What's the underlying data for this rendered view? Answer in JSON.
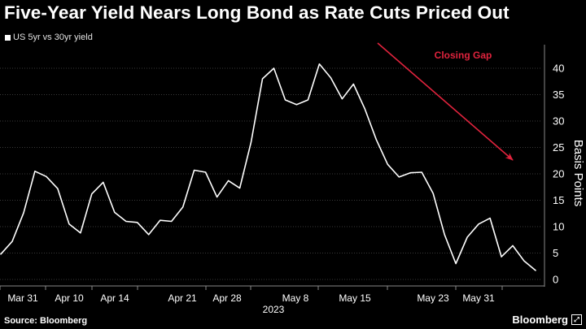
{
  "title": "Five-Year Yield Nears Long Bond as Rate Cuts Priced Out",
  "legend_label": "US 5yr vs 30yr yield",
  "source": "Source: Bloomberg",
  "brand": "Bloomberg",
  "brand_icon": "expand-icon",
  "annotation": {
    "text": "Closing Gap",
    "color": "#e0233d"
  },
  "chart_data": {
    "type": "line",
    "xlabel": "2023",
    "ylabel": "Basis Points",
    "ylim": [
      0,
      43
    ],
    "yticks": [
      0,
      5,
      10,
      15,
      20,
      25,
      30,
      35,
      40
    ],
    "x_ticks": [
      "Mar 31",
      "Apr 10",
      "Apr 14",
      "Apr 21",
      "Apr 28",
      "May 8",
      "May 15",
      "May 23",
      "May 31"
    ],
    "grid": true,
    "series": [
      {
        "color": "#ffffff",
        "values": [
          4.8,
          7.2,
          12.6,
          20.5,
          19.5,
          17.2,
          10.5,
          8.8,
          16.2,
          18.4,
          12.7,
          11.0,
          10.8,
          8.5,
          11.2,
          11.0,
          13.7,
          20.7,
          20.3,
          15.6,
          18.7,
          17.3,
          26.0,
          38.0,
          40.0,
          34.0,
          33.1,
          34.0,
          40.8,
          38.2,
          34.2,
          37.0,
          32.3,
          26.5,
          21.8,
          19.4,
          20.2,
          20.3,
          16.3,
          8.5,
          3.0,
          8.0,
          10.5,
          11.6,
          4.3,
          6.4,
          3.5,
          1.7
        ]
      }
    ]
  }
}
